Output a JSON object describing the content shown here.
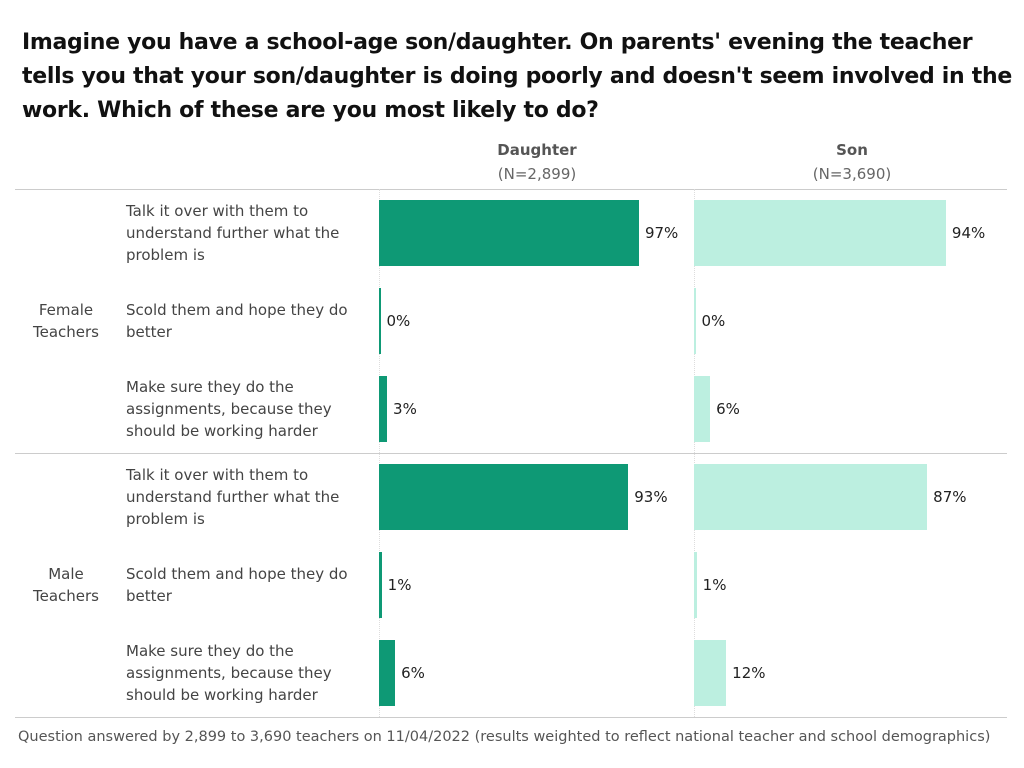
{
  "chart_data": {
    "type": "bar",
    "title": "Imagine you have a school-age son/daughter. On parents' evening the teacher tells you that your son/daughter is doing poorly and doesn't seem involved in the work. Which of these are you most likely to do?",
    "row_groups": [
      {
        "name": "Female Teachers",
        "categories": [
          "Talk it over with them to understand further what the problem is",
          "Scold them and hope they do better",
          "Make sure they do the assignments, because they should be working harder"
        ]
      },
      {
        "name": "Male Teachers",
        "categories": [
          "Talk it over with them to understand further what the problem is",
          "Scold them and hope they do better",
          "Make sure they do the assignments, because they should be working harder"
        ]
      }
    ],
    "series": [
      {
        "name": "Daughter",
        "sample": "(N=2,899)",
        "color": "#0e9975",
        "values": [
          [
            97,
            0,
            3
          ],
          [
            93,
            1,
            6
          ]
        ],
        "value_labels": [
          [
            "97%",
            "0%",
            "3%"
          ],
          [
            "93%",
            "1%",
            "6%"
          ]
        ]
      },
      {
        "name": "Son",
        "sample": "(N=3,690)",
        "color": "#bcefe0",
        "values": [
          [
            94,
            0,
            6
          ],
          [
            87,
            1,
            12
          ]
        ],
        "value_labels": [
          [
            "94%",
            "0%",
            "6%"
          ],
          [
            "87%",
            "1%",
            "12%"
          ]
        ]
      }
    ],
    "xlim": [
      0,
      100
    ],
    "note": "Question answered by 2,899 to 3,690 teachers on 11/04/2022 (results weighted to reflect national teacher and school demographics)"
  }
}
